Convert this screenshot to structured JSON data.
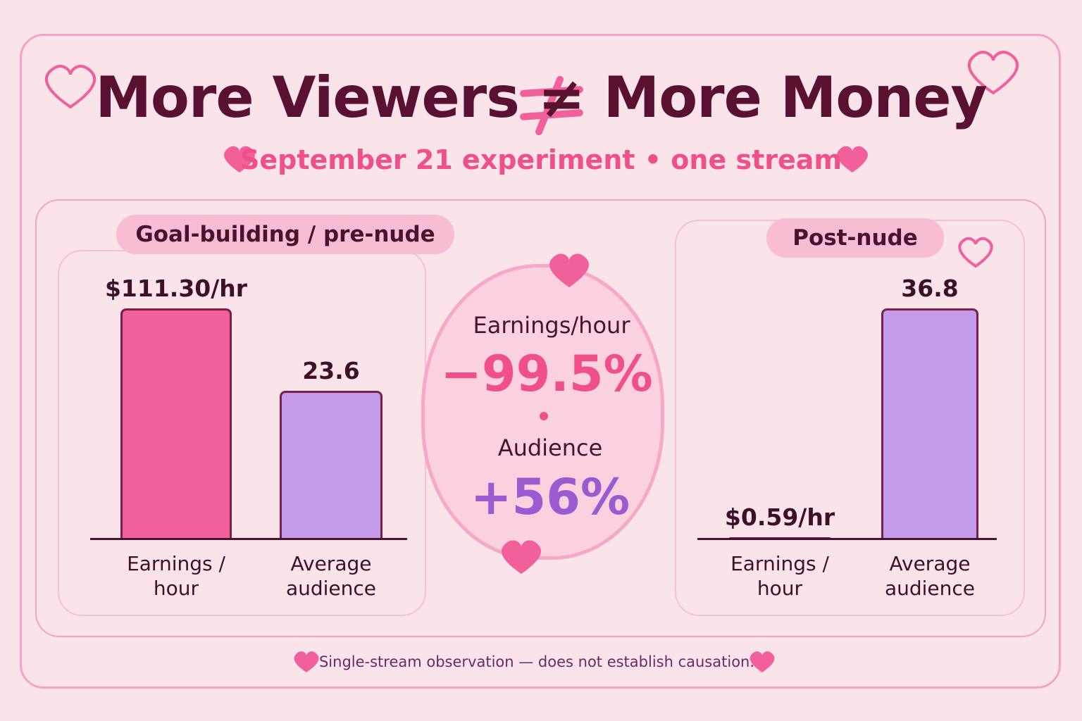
{
  "title": "More Viewers ≠ More Money",
  "subtitle": "September 21 experiment • one stream",
  "callout": {
    "earnings_label": "Earnings/hour",
    "earnings_change": "−99.5%",
    "audience_label": "Audience",
    "audience_change": "+56%"
  },
  "chart_data": [
    {
      "type": "bar",
      "title": "Goal-building / pre-nude",
      "categories": [
        "Earnings / hour",
        "Average audience"
      ],
      "values": [
        111.3,
        23.6
      ],
      "value_labels": [
        "$111.30/hr",
        "23.6"
      ],
      "colors": [
        "#f2609a",
        "#c39be8"
      ]
    },
    {
      "type": "bar",
      "title": "Post-nude",
      "categories": [
        "Earnings / hour",
        "Average audience"
      ],
      "values": [
        0.59,
        36.8
      ],
      "value_labels": [
        "$0.59/hr",
        "36.8"
      ],
      "colors": [
        "#f2609a",
        "#c39be8"
      ]
    }
  ],
  "footnote": "Single-stream observation — does not establish causation."
}
